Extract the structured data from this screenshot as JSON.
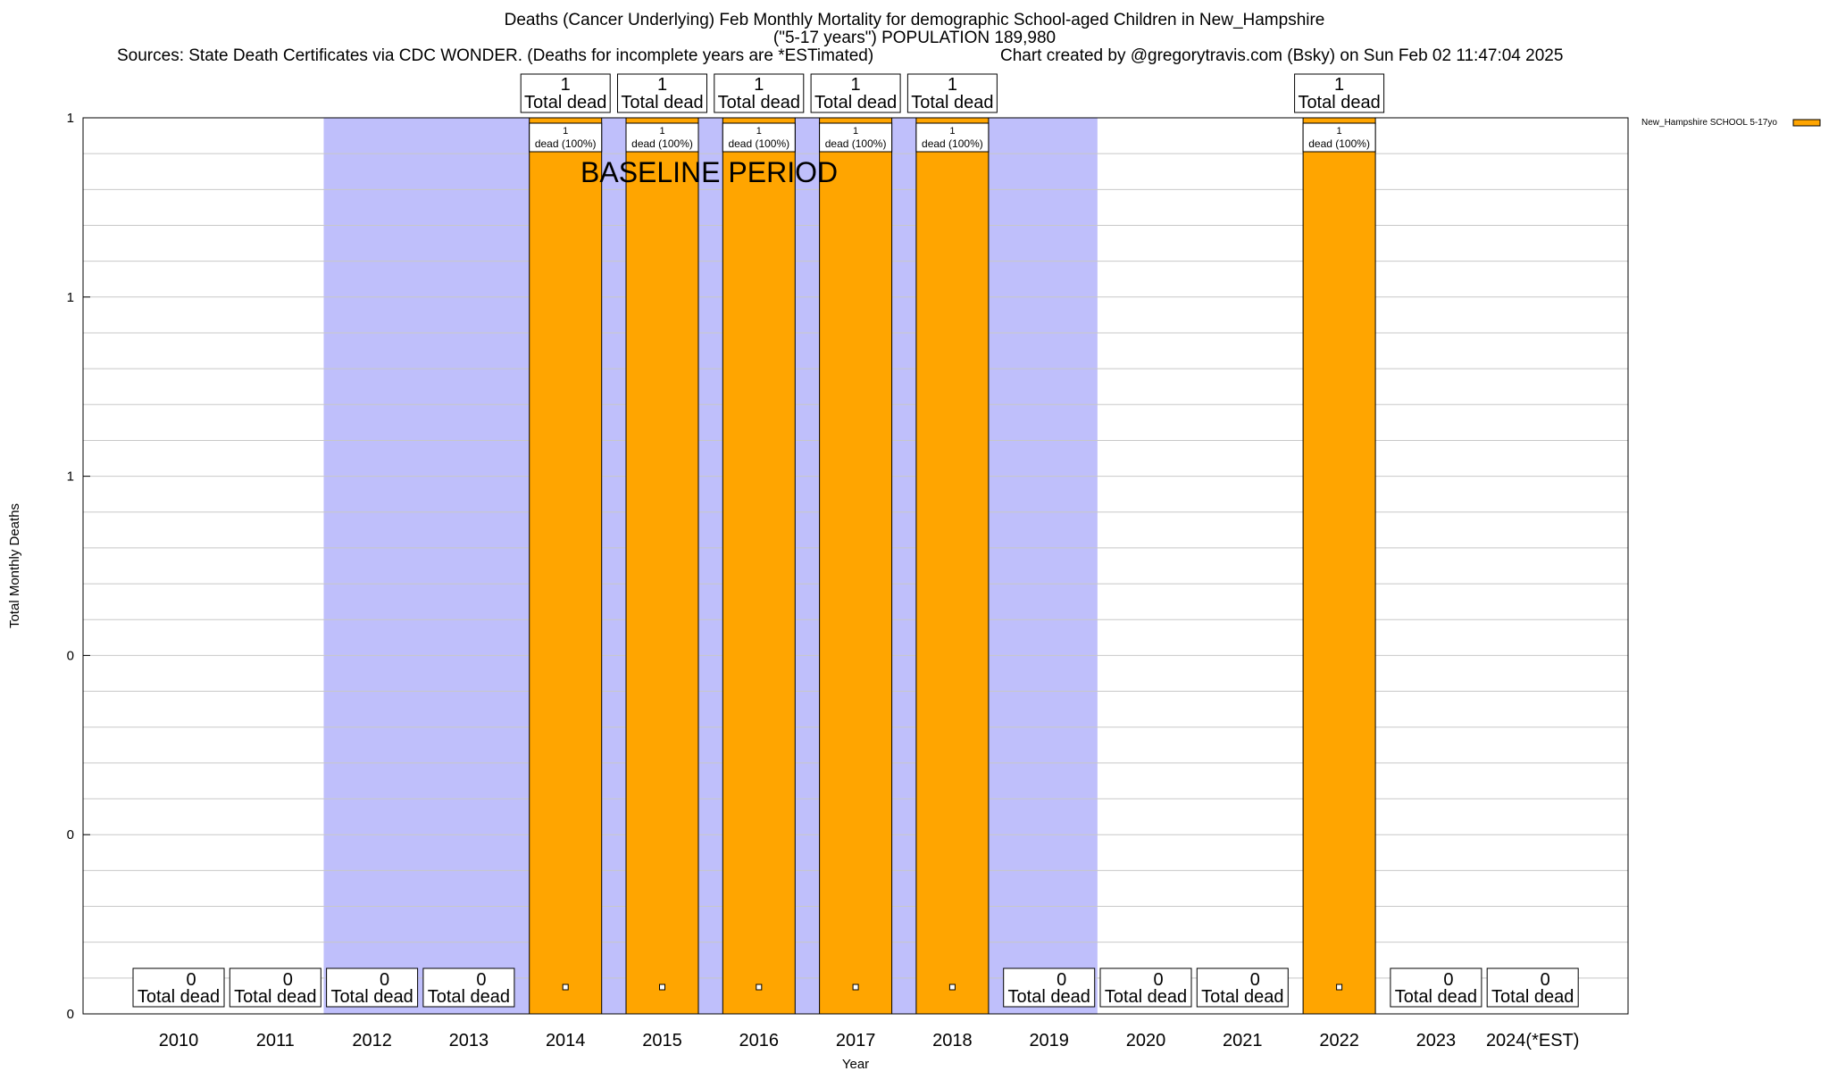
{
  "header": {
    "title_line1": "Deaths (Cancer Underlying) Feb Monthly Mortality for demographic School-aged Children in New_Hampshire",
    "title_line2": "(\"5-17 years\") POPULATION 189,980",
    "sources": "Sources: State Death Certificates via CDC WONDER. (Deaths for incomplete years are *ESTimated)",
    "credit": "Chart created by @gregorytravis.com (Bsky) on Sun Feb 02 11:47:04 2025"
  },
  "chart_data": {
    "type": "bar",
    "categories": [
      "2010",
      "2011",
      "2012",
      "2013",
      "2014",
      "2015",
      "2016",
      "2017",
      "2018",
      "2019",
      "2020",
      "2021",
      "2022",
      "2023",
      "2024(*EST)"
    ],
    "series": [
      {
        "name": "New_Hampshire SCHOOL 5-17yo",
        "values": [
          0,
          0,
          0,
          0,
          1,
          1,
          1,
          1,
          1,
          0,
          0,
          0,
          1,
          0,
          0
        ]
      }
    ],
    "bar_labels": [
      "1\ndead (100%)"
    ],
    "total_label_suffix": "Total dead",
    "xlabel": "Year",
    "ylabel": "Total Monthly Deaths",
    "ylim": [
      0,
      1
    ],
    "ytick_labels": [
      "0",
      "0",
      "0",
      "1",
      "1",
      "1"
    ],
    "baseline_label": "BASELINE PERIOD",
    "baseline_range": [
      "2012",
      "2019"
    ],
    "grid": true,
    "legend_position": "top-right",
    "colors": {
      "bar": "#ffa500",
      "baseline": "#bfbffb",
      "grid": "#c8c8c8"
    }
  }
}
